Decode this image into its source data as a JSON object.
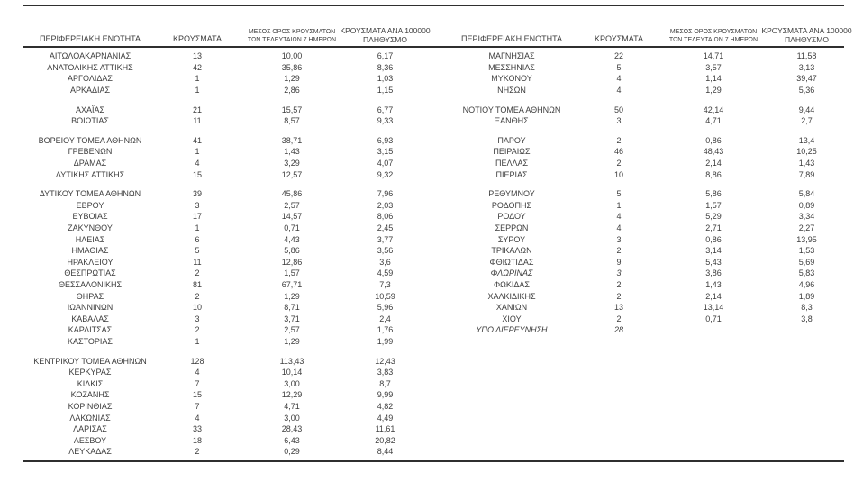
{
  "page": {
    "background": "#ffffff",
    "text_color": "#3d3d3d",
    "rule_color": "#2f2f2f"
  },
  "headers": {
    "region": "ΠΕΡΙΦΕΡΕΙΑΚΗ ΕΝΟΤΗΤΑ",
    "cases": "ΚΡΟΥΣΜΑΤΑ",
    "avg7_line1": "ΜΕΣΟΣ ΟΡΟΣ ΚΡΟΥΣΜΑΤΩΝ",
    "avg7_line2": "ΤΩΝ ΤΕΛΕΥΤΑΙΩΝ 7 ΗΜΕΡΩΝ",
    "per100k_line1": "ΚΡΟΥΣΜΑΤΑ ΑΝΑ 100000",
    "per100k_line2": "ΠΛΗΘΥΣΜΟ"
  },
  "left_table": {
    "sections": [
      {
        "rows": [
          {
            "cells": [
              "ΑΙΤΩΛΟΑΚΑΡΝΑΝΙΑΣ",
              "13",
              "10,00",
              "6,17"
            ]
          },
          {
            "cells": [
              "ΑΝΑΤΟΛΙΚΗΣ ΑΤΤΙΚΗΣ",
              "42",
              "35,86",
              "8,36"
            ]
          },
          {
            "cells": [
              "ΑΡΓΟΛΙΔΑΣ",
              "1",
              "1,29",
              "1,03"
            ]
          },
          {
            "cells": [
              "ΑΡΚΑΔΙΑΣ",
              "1",
              "2,86",
              "1,15"
            ]
          }
        ]
      },
      {
        "rows": [
          {
            "cells": [
              "ΑΧΑΪΑΣ",
              "21",
              "15,57",
              "6,77"
            ]
          },
          {
            "cells": [
              "ΒΟΙΩΤΙΑΣ",
              "11",
              "8,57",
              "9,33"
            ]
          }
        ]
      },
      {
        "rows": [
          {
            "cells": [
              "ΒΟΡΕΙΟΥ ΤΟΜΕΑ ΑΘΗΝΩΝ",
              "41",
              "38,71",
              "6,93"
            ]
          },
          {
            "cells": [
              "ΓΡΕΒΕΝΩΝ",
              "1",
              "1,43",
              "3,15"
            ]
          },
          {
            "cells": [
              "ΔΡΑΜΑΣ",
              "4",
              "3,29",
              "4,07"
            ]
          },
          {
            "cells": [
              "ΔΥΤΙΚΗΣ ΑΤΤΙΚΗΣ",
              "15",
              "12,57",
              "9,32"
            ]
          }
        ]
      },
      {
        "rows": [
          {
            "cells": [
              "ΔΥΤΙΚΟΥ ΤΟΜΕΑ ΑΘΗΝΩΝ",
              "39",
              "45,86",
              "7,96"
            ]
          },
          {
            "cells": [
              "ΕΒΡΟΥ",
              "3",
              "2,57",
              "2,03"
            ]
          },
          {
            "cells": [
              "ΕΥΒΟΙΑΣ",
              "17",
              "14,57",
              "8,06"
            ]
          },
          {
            "cells": [
              "ΖΑΚΥΝΘΟΥ",
              "1",
              "0,71",
              "2,45"
            ]
          },
          {
            "cells": [
              "ΗΛΕΙΑΣ",
              "6",
              "4,43",
              "3,77"
            ]
          },
          {
            "cells": [
              "ΗΜΑΘΙΑΣ",
              "5",
              "5,86",
              "3,56"
            ]
          },
          {
            "cells": [
              "ΗΡΑΚΛΕΙΟΥ",
              "11",
              "12,86",
              "3,6"
            ]
          },
          {
            "cells": [
              "ΘΕΣΠΡΩΤΙΑΣ",
              "2",
              "1,57",
              "4,59"
            ]
          },
          {
            "cells": [
              "ΘΕΣΣΑΛΟΝΙΚΗΣ",
              "81",
              "67,71",
              "7,3"
            ]
          },
          {
            "cells": [
              "ΘΗΡΑΣ",
              "2",
              "1,29",
              "10,59"
            ]
          },
          {
            "cells": [
              "ΙΩΑΝΝΙΝΩΝ",
              "10",
              "8,71",
              "5,96"
            ]
          },
          {
            "cells": [
              "ΚΑΒΑΛΑΣ",
              "3",
              "3,71",
              "2,4"
            ]
          },
          {
            "cells": [
              "ΚΑΡΔΙΤΣΑΣ",
              "2",
              "2,57",
              "1,76"
            ]
          },
          {
            "cells": [
              "ΚΑΣΤΟΡΙΑΣ",
              "1",
              "1,29",
              "1,99"
            ]
          }
        ]
      },
      {
        "rows": [
          {
            "cells": [
              "ΚΕΝΤΡΙΚΟΥ ΤΟΜΕΑ ΑΘΗΝΩΝ",
              "128",
              "113,43",
              "12,43"
            ]
          },
          {
            "cells": [
              "ΚΕΡΚΥΡΑΣ",
              "4",
              "10,14",
              "3,83"
            ]
          },
          {
            "cells": [
              "ΚΙΛΚΙΣ",
              "7",
              "3,00",
              "8,7"
            ]
          },
          {
            "cells": [
              "ΚΟΖΑΝΗΣ",
              "15",
              "12,29",
              "9,99"
            ]
          },
          {
            "cells": [
              "ΚΟΡΙΝΘΙΑΣ",
              "7",
              "4,71",
              "4,82"
            ]
          },
          {
            "cells": [
              "ΛΑΚΩΝΙΑΣ",
              "4",
              "3,00",
              "4,49"
            ]
          },
          {
            "cells": [
              "ΛΑΡΙΣΑΣ",
              "33",
              "28,43",
              "11,61"
            ]
          },
          {
            "cells": [
              "ΛΕΣΒΟΥ",
              "18",
              "6,43",
              "20,82"
            ]
          },
          {
            "cells": [
              "ΛΕΥΚΑΔΑΣ",
              "2",
              "0,29",
              "8,44"
            ]
          }
        ]
      }
    ]
  },
  "right_table": {
    "sections": [
      {
        "rows": [
          {
            "cells": [
              "ΜΑΓΝΗΣΙΑΣ",
              "22",
              "14,71",
              "11,58"
            ]
          },
          {
            "cells": [
              "ΜΕΣΣΗΝΙΑΣ",
              "5",
              "3,57",
              "3,13"
            ]
          },
          {
            "cells": [
              "ΜΥΚΟΝΟΥ",
              "4",
              "1,14",
              "39,47"
            ]
          },
          {
            "cells": [
              "ΝΗΣΩΝ",
              "4",
              "1,29",
              "5,36"
            ]
          }
        ]
      },
      {
        "rows": [
          {
            "cells": [
              "ΝΟΤΙΟΥ ΤΟΜΕΑ ΑΘΗΝΩΝ",
              "50",
              "42,14",
              "9,44"
            ]
          },
          {
            "cells": [
              "ΞΑΝΘΗΣ",
              "3",
              "4,71",
              "2,7"
            ]
          }
        ]
      },
      {
        "rows": [
          {
            "cells": [
              "ΠΑΡΟΥ",
              "2",
              "0,86",
              "13,4"
            ]
          },
          {
            "cells": [
              "ΠΕΙΡΑΙΩΣ",
              "46",
              "48,43",
              "10,25"
            ]
          },
          {
            "cells": [
              "ΠΕΛΛΑΣ",
              "2",
              "2,14",
              "1,43"
            ]
          },
          {
            "cells": [
              "ΠΙΕΡΙΑΣ",
              "10",
              "8,86",
              "7,89"
            ]
          }
        ]
      },
      {
        "rows": [
          {
            "cells": [
              "ΡΕΘΥΜΝΟΥ",
              "5",
              "5,86",
              "5,84"
            ]
          },
          {
            "cells": [
              "ΡΟΔΟΠΗΣ",
              "1",
              "1,57",
              "0,89"
            ]
          },
          {
            "cells": [
              "ΡΟΔΟΥ",
              "4",
              "5,29",
              "3,34"
            ]
          },
          {
            "cells": [
              "ΣΕΡΡΩΝ",
              "4",
              "2,71",
              "2,27"
            ]
          },
          {
            "cells": [
              "ΣΥΡΟΥ",
              "3",
              "0,86",
              "13,95"
            ]
          },
          {
            "cells": [
              "ΤΡΙΚΑΛΩΝ",
              "2",
              "3,14",
              "1,53"
            ]
          },
          {
            "cells": [
              "ΦΘΙΩΤΙΔΑΣ",
              "9",
              "5,43",
              "5,69"
            ]
          },
          {
            "cells": [
              "ΦΛΩΡΙΝΑΣ",
              "3",
              "3,86",
              "5,83"
            ],
            "italic_cells": [
              0,
              1
            ]
          },
          {
            "cells": [
              "ΦΩΚΙΔΑΣ",
              "2",
              "1,43",
              "4,96"
            ]
          },
          {
            "cells": [
              "ΧΑΛΚΙΔΙΚΗΣ",
              "2",
              "2,14",
              "1,89"
            ]
          },
          {
            "cells": [
              "ΧΑΝΙΩΝ",
              "13",
              "13,14",
              "8,3"
            ]
          },
          {
            "cells": [
              "ΧΙΟΥ",
              "2",
              "0,71",
              "3,8"
            ]
          },
          {
            "cells": [
              "ΥΠΟ ΔΙΕΡΕΥΝΗΣΗ",
              "28"
            ],
            "italic_cells": [
              0,
              1
            ]
          }
        ]
      }
    ]
  }
}
